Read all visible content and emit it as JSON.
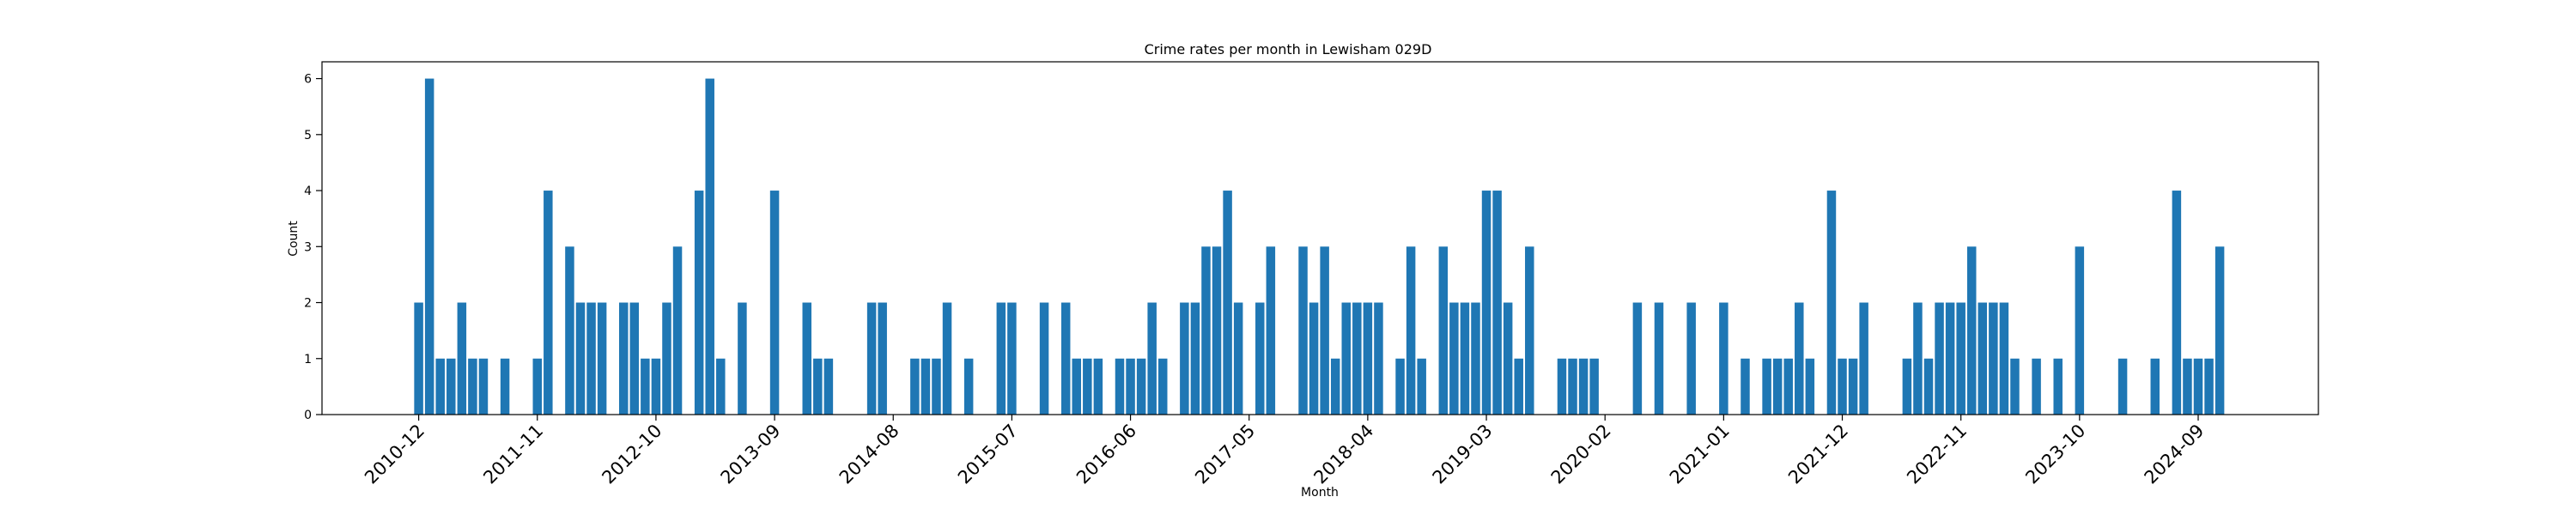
{
  "chart_data": {
    "type": "bar",
    "title": "Crime rates per month in Lewisham 029D",
    "xlabel": "Month",
    "ylabel": "Count",
    "ylim": [
      0,
      6.3
    ],
    "y_ticks": [
      0,
      1,
      2,
      3,
      4,
      5,
      6
    ],
    "x_tick_labels": [
      "2010-12",
      "2011-11",
      "2012-10",
      "2013-09",
      "2014-08",
      "2015-07",
      "2016-06",
      "2017-05",
      "2018-04",
      "2019-03",
      "2020-02",
      "2021-01",
      "2021-12",
      "2022-11",
      "2023-10",
      "2024-09"
    ],
    "grid": false,
    "bar_color": "#1f77b4",
    "series": [
      {
        "x": [
          "2010-12",
          "2011-01",
          "2011-02",
          "2011-03",
          "2011-04",
          "2011-05",
          "2011-06",
          "2011-08",
          "2011-11",
          "2011-12",
          "2012-02",
          "2012-03",
          "2012-04",
          "2012-05",
          "2012-07",
          "2012-08",
          "2012-09",
          "2012-10",
          "2012-11",
          "2012-12",
          "2013-02",
          "2013-03",
          "2013-04",
          "2013-06",
          "2013-09",
          "2013-12",
          "2014-01",
          "2014-02",
          "2014-06",
          "2014-07",
          "2014-10",
          "2014-11",
          "2014-12",
          "2015-01",
          "2015-03",
          "2015-06",
          "2015-07",
          "2015-10",
          "2015-12",
          "2016-01",
          "2016-02",
          "2016-03",
          "2016-05",
          "2016-06",
          "2016-07",
          "2016-08",
          "2016-09",
          "2016-11",
          "2016-12",
          "2017-01",
          "2017-02",
          "2017-03",
          "2017-04",
          "2017-06",
          "2017-07",
          "2017-10",
          "2017-11",
          "2017-12",
          "2018-01",
          "2018-02",
          "2018-03",
          "2018-04",
          "2018-05",
          "2018-07",
          "2018-08",
          "2018-09",
          "2018-11",
          "2018-12",
          "2019-01",
          "2019-02",
          "2019-03",
          "2019-04",
          "2019-05",
          "2019-06",
          "2019-07",
          "2019-10",
          "2019-11",
          "2019-12",
          "2020-01",
          "2020-05",
          "2020-07",
          "2020-10",
          "2021-01",
          "2021-03",
          "2021-05",
          "2021-06",
          "2021-07",
          "2021-08",
          "2021-09",
          "2021-11",
          "2021-12",
          "2022-01",
          "2022-02",
          "2022-06",
          "2022-07",
          "2022-08",
          "2022-09",
          "2022-10",
          "2022-11",
          "2022-12",
          "2023-01",
          "2023-02",
          "2023-03",
          "2023-04",
          "2023-06",
          "2023-08",
          "2023-10",
          "2024-02",
          "2024-05",
          "2024-07",
          "2024-08",
          "2024-09",
          "2024-10",
          "2024-11"
        ],
        "values": [
          2,
          6,
          1,
          1,
          2,
          1,
          1,
          1,
          1,
          4,
          3,
          2,
          2,
          2,
          2,
          2,
          1,
          1,
          2,
          3,
          4,
          6,
          1,
          2,
          4,
          2,
          1,
          1,
          2,
          2,
          1,
          1,
          1,
          2,
          1,
          2,
          2,
          2,
          2,
          1,
          1,
          1,
          1,
          1,
          1,
          2,
          1,
          2,
          2,
          3,
          3,
          4,
          2,
          2,
          3,
          3,
          2,
          3,
          1,
          2,
          2,
          2,
          2,
          1,
          3,
          1,
          3,
          2,
          2,
          2,
          4,
          4,
          2,
          1,
          3,
          1,
          1,
          1,
          1,
          2,
          2,
          2,
          2,
          1,
          1,
          1,
          1,
          2,
          1,
          4,
          1,
          1,
          2,
          1,
          2,
          1,
          2,
          2,
          2,
          3,
          2,
          2,
          2,
          1,
          1,
          1,
          3,
          1,
          1,
          4,
          1,
          1,
          1,
          3
        ]
      }
    ]
  }
}
